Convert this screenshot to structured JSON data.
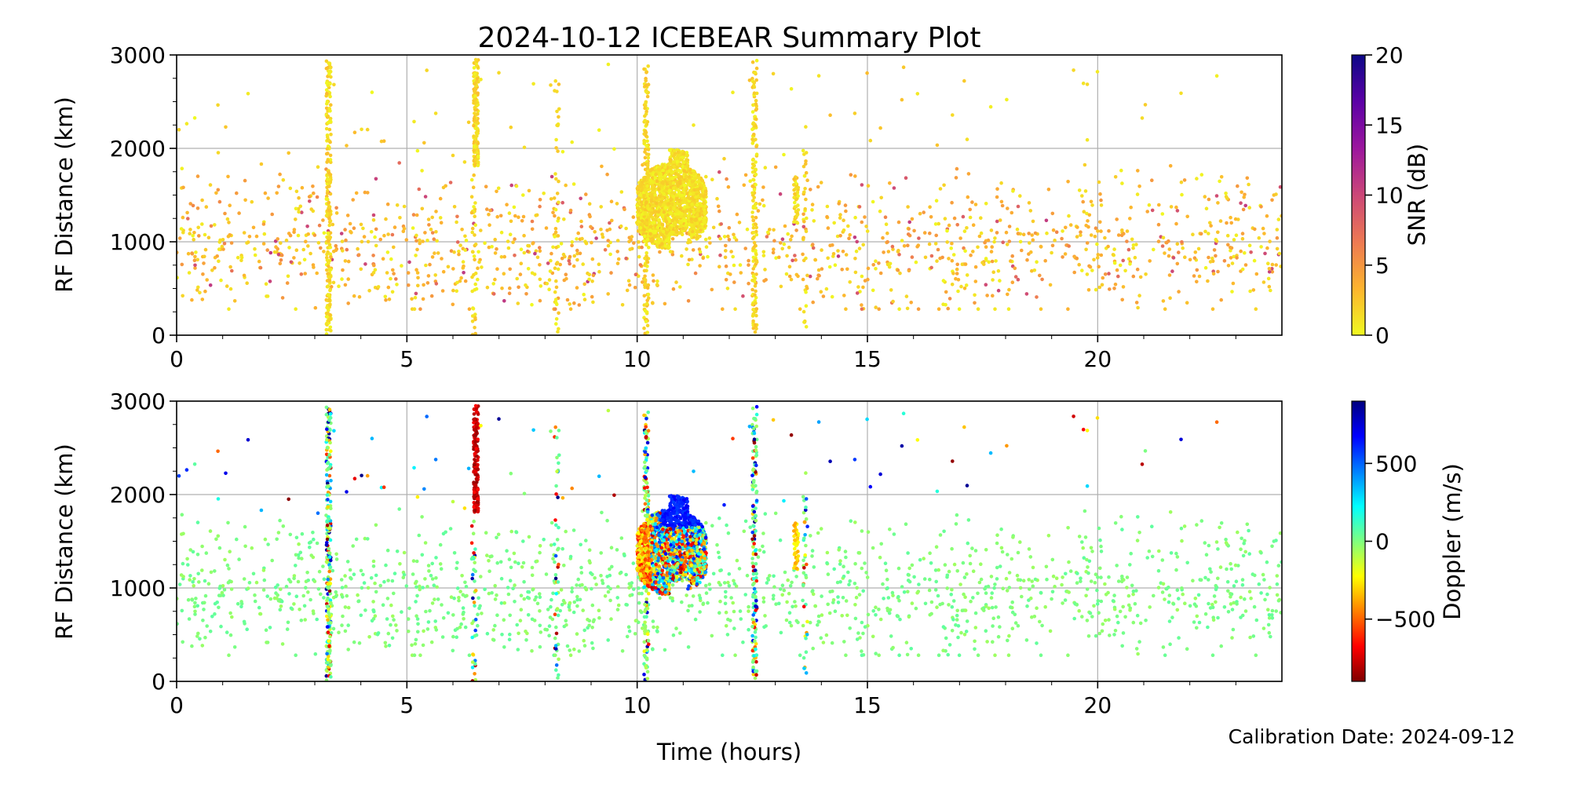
{
  "chart_data": [
    {
      "type": "scatter",
      "title": "2024-10-12 ICEBEAR Summary Plot",
      "xlabel": "",
      "ylabel": "RF Distance (km)",
      "xlim": [
        0,
        24
      ],
      "ylim": [
        0,
        3000
      ],
      "x_ticks": [
        "0",
        "5",
        "10",
        "15",
        "20"
      ],
      "y_ticks": [
        "0",
        "1000",
        "2000",
        "3000"
      ],
      "grid": true,
      "color_by": "snr",
      "colorbar": {
        "label": "SNR (dB)",
        "range": [
          0,
          20
        ],
        "ticks": [
          "0",
          "5",
          "10",
          "15",
          "20"
        ],
        "colormap": "plasma_r",
        "colors": [
          "#f0f921",
          "#fdb42f",
          "#ed7953",
          "#cc4778",
          "#9c179e",
          "#5c01a6",
          "#0d0887"
        ]
      },
      "series": [
        {
          "x": [
            3.3,
            3.3
          ],
          "y": [
            0,
            2950
          ],
          "kind": "vertical-band",
          "snr": 1
        },
        {
          "x": [
            6.45,
            6.55
          ],
          "y": [
            1800,
            2950
          ],
          "kind": "vertical-band",
          "snr": 1
        },
        {
          "x": [
            10.2,
            10.2
          ],
          "y": [
            0,
            2900
          ],
          "kind": "vertical-band",
          "snr": 1
        },
        {
          "x": [
            12.55,
            12.55
          ],
          "y": [
            0,
            2950
          ],
          "kind": "vertical-band",
          "snr": 1
        },
        {
          "x": [
            10.0,
            11.5
          ],
          "y": [
            800,
            2100
          ],
          "kind": "dense-cluster",
          "snr": 2
        },
        {
          "x": [
            0,
            24
          ],
          "y": [
            300,
            1800
          ],
          "kind": "background-scatter",
          "snr": 3
        }
      ]
    },
    {
      "type": "scatter",
      "title": "",
      "xlabel": "Time (hours)",
      "ylabel": "RF Distance (km)",
      "xlim": [
        0,
        24
      ],
      "ylim": [
        0,
        3000
      ],
      "x_ticks": [
        "0",
        "5",
        "10",
        "15",
        "20"
      ],
      "y_ticks": [
        "0",
        "1000",
        "2000",
        "3000"
      ],
      "grid": true,
      "color_by": "doppler",
      "colorbar": {
        "label": "Doppler (m/s)",
        "range": [
          -900,
          900
        ],
        "ticks": [
          "−500",
          "0",
          "500"
        ],
        "tick_values": [
          -500,
          0,
          500
        ],
        "colormap": "jet_r",
        "colors": [
          "#7f0000",
          "#ff0000",
          "#ff7f00",
          "#ffff00",
          "#7fff7f",
          "#00ffff",
          "#007fff",
          "#0000ff",
          "#00007f"
        ]
      },
      "series": [
        {
          "x": [
            3.3,
            3.3
          ],
          "y": [
            0,
            2950
          ],
          "kind": "vertical-band",
          "doppler": "mixed"
        },
        {
          "x": [
            6.45,
            6.55
          ],
          "y": [
            1800,
            2950
          ],
          "kind": "vertical-band",
          "doppler": -700
        },
        {
          "x": [
            10.2,
            10.2
          ],
          "y": [
            0,
            2900
          ],
          "kind": "vertical-band",
          "doppler": "mixed"
        },
        {
          "x": [
            12.55,
            12.55
          ],
          "y": [
            0,
            2950
          ],
          "kind": "vertical-band",
          "doppler": "mixed"
        },
        {
          "x": [
            10.0,
            11.5
          ],
          "y": [
            800,
            2100
          ],
          "kind": "dense-cluster",
          "doppler": "mixed"
        },
        {
          "x": [
            0,
            24
          ],
          "y": [
            300,
            1800
          ],
          "kind": "background-scatter",
          "doppler": 0
        }
      ]
    }
  ],
  "footer": {
    "calibration": "Calibration Date: 2024-09-12"
  }
}
